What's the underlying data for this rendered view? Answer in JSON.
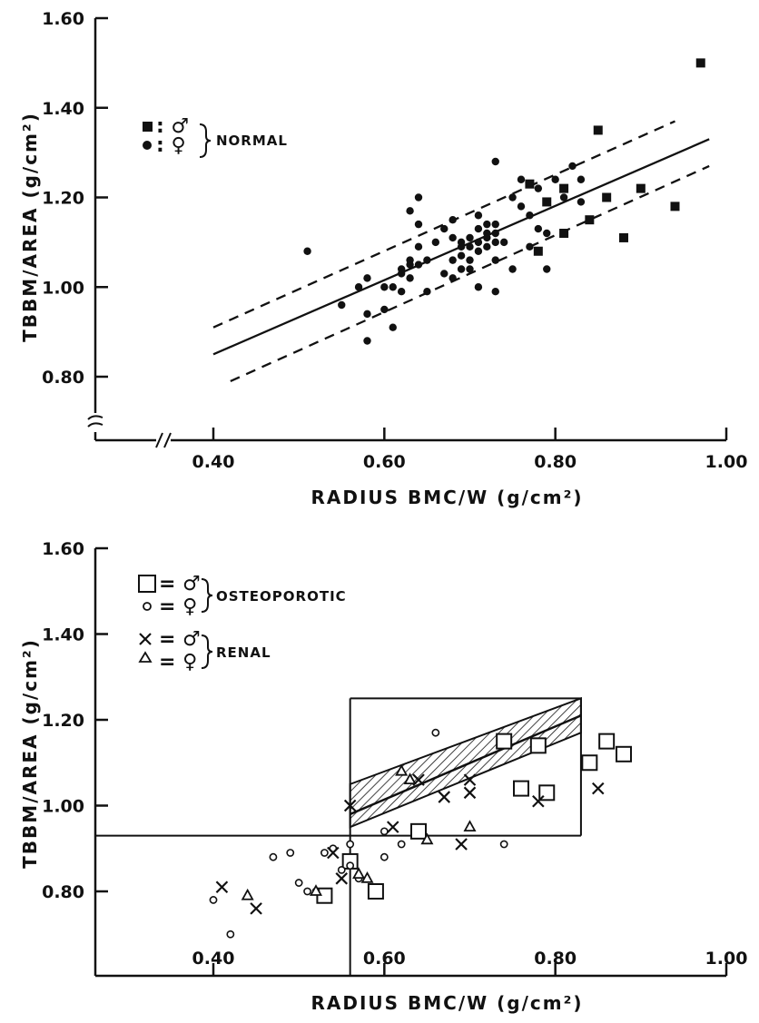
{
  "chart_data": [
    {
      "type": "scatter",
      "title": "",
      "xlabel": "RADIUS BMC/W (g/cm²)",
      "ylabel": "TBBM/AREA (g/cm²)",
      "xlim": [
        0.26,
        1.0
      ],
      "ylim": [
        0.7,
        1.6
      ],
      "x_ticks": [
        "0.40",
        "0.60",
        "0.80",
        "1.00"
      ],
      "y_ticks": [
        "0.80",
        "1.00",
        "1.20",
        "1.40",
        "1.60"
      ],
      "legend": {
        "placement": "top-left",
        "entries": [
          {
            "symbol": "■ = ♂",
            "series": "males"
          },
          {
            "symbol": "● = ♀",
            "series": "females"
          }
        ],
        "group_label": "NORMAL"
      },
      "series": [
        {
          "name": "",
          "marker": "filled-square",
          "points": [
            [
              0.97,
              1.5
            ],
            [
              0.85,
              1.35
            ],
            [
              0.77,
              1.23
            ],
            [
              0.78,
              1.08
            ],
            [
              0.79,
              1.19
            ],
            [
              0.81,
              1.22
            ],
            [
              0.81,
              1.12
            ],
            [
              0.84,
              1.15
            ],
            [
              0.86,
              1.2
            ],
            [
              0.88,
              1.11
            ],
            [
              0.9,
              1.22
            ],
            [
              0.94,
              1.18
            ]
          ]
        },
        {
          "name": "",
          "marker": "filled-circle",
          "points": [
            [
              0.51,
              1.08
            ],
            [
              0.55,
              0.96
            ],
            [
              0.57,
              1.0
            ],
            [
              0.58,
              1.02
            ],
            [
              0.58,
              0.94
            ],
            [
              0.58,
              0.88
            ],
            [
              0.6,
              1.0
            ],
            [
              0.6,
              0.95
            ],
            [
              0.61,
              1.0
            ],
            [
              0.61,
              0.91
            ],
            [
              0.62,
              1.04
            ],
            [
              0.62,
              1.03
            ],
            [
              0.62,
              0.99
            ],
            [
              0.63,
              1.17
            ],
            [
              0.63,
              1.06
            ],
            [
              0.63,
              1.05
            ],
            [
              0.63,
              1.02
            ],
            [
              0.64,
              1.2
            ],
            [
              0.64,
              1.14
            ],
            [
              0.64,
              1.09
            ],
            [
              0.64,
              1.05
            ],
            [
              0.65,
              1.06
            ],
            [
              0.65,
              0.99
            ],
            [
              0.66,
              1.1
            ],
            [
              0.67,
              1.13
            ],
            [
              0.67,
              1.03
            ],
            [
              0.68,
              1.15
            ],
            [
              0.68,
              1.11
            ],
            [
              0.68,
              1.06
            ],
            [
              0.68,
              1.02
            ],
            [
              0.69,
              1.1
            ],
            [
              0.69,
              1.09
            ],
            [
              0.69,
              1.07
            ],
            [
              0.69,
              1.04
            ],
            [
              0.7,
              1.11
            ],
            [
              0.7,
              1.09
            ],
            [
              0.7,
              1.06
            ],
            [
              0.7,
              1.04
            ],
            [
              0.71,
              1.16
            ],
            [
              0.71,
              1.13
            ],
            [
              0.71,
              1.1
            ],
            [
              0.71,
              1.08
            ],
            [
              0.71,
              1.0
            ],
            [
              0.72,
              1.14
            ],
            [
              0.72,
              1.12
            ],
            [
              0.72,
              1.11
            ],
            [
              0.72,
              1.09
            ],
            [
              0.73,
              1.28
            ],
            [
              0.73,
              1.14
            ],
            [
              0.73,
              1.12
            ],
            [
              0.73,
              1.1
            ],
            [
              0.73,
              1.06
            ],
            [
              0.73,
              0.99
            ],
            [
              0.74,
              1.1
            ],
            [
              0.75,
              1.2
            ],
            [
              0.75,
              1.04
            ],
            [
              0.76,
              1.24
            ],
            [
              0.76,
              1.18
            ],
            [
              0.77,
              1.16
            ],
            [
              0.77,
              1.09
            ],
            [
              0.78,
              1.22
            ],
            [
              0.78,
              1.13
            ],
            [
              0.79,
              1.12
            ],
            [
              0.79,
              1.04
            ],
            [
              0.8,
              1.24
            ],
            [
              0.81,
              1.2
            ],
            [
              0.82,
              1.27
            ],
            [
              0.83,
              1.24
            ],
            [
              0.83,
              1.19
            ]
          ]
        }
      ],
      "lines": [
        {
          "style": "solid",
          "from": [
            0.4,
            0.85
          ],
          "to": [
            0.98,
            1.33
          ]
        },
        {
          "style": "dashed",
          "from": [
            0.4,
            0.91
          ],
          "to": [
            0.94,
            1.37
          ]
        },
        {
          "style": "dashed",
          "from": [
            0.42,
            0.79
          ],
          "to": [
            0.98,
            1.27
          ]
        }
      ]
    },
    {
      "type": "scatter",
      "title": "",
      "xlabel": "RADIUS BMC/W (g/cm²)",
      "ylabel": "TBBM/AREA (g/cm²)",
      "xlim": [
        0.26,
        1.0
      ],
      "ylim": [
        0.68,
        1.6
      ],
      "x_ticks": [
        "0.40",
        "0.60",
        "0.80",
        "1.00"
      ],
      "y_ticks": [
        "0.80",
        "1.00",
        "1.20",
        "1.40",
        "1.60"
      ],
      "legend": {
        "placement": "top-left",
        "groups": [
          {
            "group_label": "OSTEOPOROTIC",
            "entries": [
              {
                "symbol": "□= ♂",
                "series": "osteoporotic-male"
              },
              {
                "symbol": "o = ♀",
                "series": "osteoporotic-female"
              }
            ]
          },
          {
            "group_label": "RENAL",
            "entries": [
              {
                "symbol": "×= ♂",
                "series": "renal-male"
              },
              {
                "symbol": "Δ = ♀",
                "series": "renal-female"
              }
            ]
          }
        ]
      },
      "series": [
        {
          "name": "",
          "marker": "open-square",
          "points": [
            [
              0.53,
              0.79
            ],
            [
              0.56,
              0.87
            ],
            [
              0.59,
              0.8
            ],
            [
              0.64,
              0.94
            ],
            [
              0.74,
              1.15
            ],
            [
              0.76,
              1.04
            ],
            [
              0.78,
              1.14
            ],
            [
              0.79,
              1.03
            ],
            [
              0.84,
              1.1
            ],
            [
              0.86,
              1.15
            ],
            [
              0.88,
              1.12
            ]
          ]
        },
        {
          "name": "",
          "marker": "open-circle",
          "points": [
            [
              0.4,
              0.78
            ],
            [
              0.42,
              0.7
            ],
            [
              0.47,
              0.88
            ],
            [
              0.49,
              0.89
            ],
            [
              0.5,
              0.82
            ],
            [
              0.51,
              0.8
            ],
            [
              0.52,
              0.8
            ],
            [
              0.53,
              0.89
            ],
            [
              0.54,
              0.9
            ],
            [
              0.55,
              0.85
            ],
            [
              0.56,
              0.91
            ],
            [
              0.56,
              0.86
            ],
            [
              0.57,
              0.83
            ],
            [
              0.6,
              0.88
            ],
            [
              0.6,
              0.94
            ],
            [
              0.62,
              0.91
            ],
            [
              0.66,
              1.17
            ],
            [
              0.74,
              0.91
            ]
          ]
        },
        {
          "name": "",
          "marker": "x",
          "points": [
            [
              0.41,
              0.81
            ],
            [
              0.45,
              0.76
            ],
            [
              0.54,
              0.89
            ],
            [
              0.55,
              0.83
            ],
            [
              0.56,
              1.0
            ],
            [
              0.61,
              0.95
            ],
            [
              0.64,
              1.06
            ],
            [
              0.67,
              1.02
            ],
            [
              0.69,
              0.91
            ],
            [
              0.7,
              1.03
            ],
            [
              0.7,
              1.06
            ],
            [
              0.78,
              1.01
            ],
            [
              0.85,
              1.04
            ]
          ]
        },
        {
          "name": "",
          "marker": "open-triangle",
          "points": [
            [
              0.44,
              0.79
            ],
            [
              0.52,
              0.8
            ],
            [
              0.57,
              0.84
            ],
            [
              0.58,
              0.83
            ],
            [
              0.62,
              1.08
            ],
            [
              0.63,
              1.06
            ],
            [
              0.65,
              0.92
            ],
            [
              0.7,
              0.95
            ]
          ]
        }
      ],
      "normal_range_band": {
        "box_x": [
          0.56,
          0.83
        ],
        "box_y": [
          0.93,
          1.25
        ],
        "center_line": {
          "from": [
            0.56,
            0.98
          ],
          "to": [
            0.83,
            1.21
          ]
        },
        "upper_edge": {
          "from": [
            0.56,
            1.05
          ],
          "to": [
            0.83,
            1.25
          ]
        },
        "lower_edge": {
          "from": [
            0.56,
            0.95
          ],
          "to": [
            0.83,
            1.17
          ]
        },
        "h_guide_y": 0.93,
        "v_guide_x": 0.56
      }
    }
  ]
}
